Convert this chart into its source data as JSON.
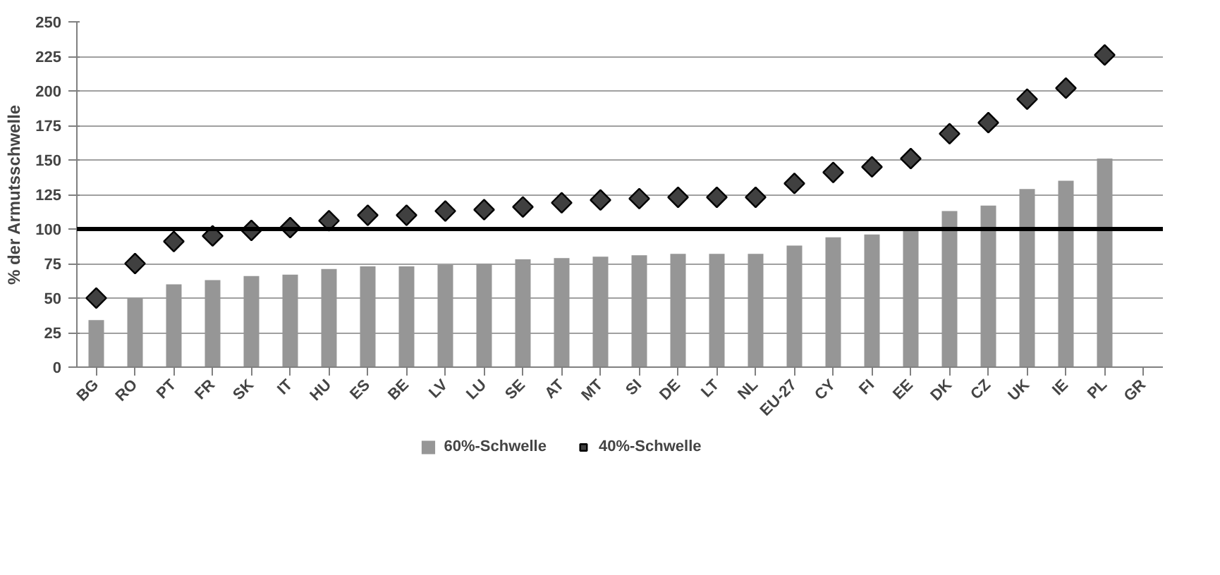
{
  "chart_data": {
    "type": "bar",
    "ylabel": "% der Armutsschwelle",
    "categories": [
      "BG",
      "RO",
      "PT",
      "FR",
      "SK",
      "IT",
      "HU",
      "ES",
      "BE",
      "LV",
      "LU",
      "SE",
      "AT",
      "MT",
      "SI",
      "DE",
      "LT",
      "NL",
      "EU-27",
      "CY",
      "FI",
      "EE",
      "DK",
      "CZ",
      "UK",
      "IE",
      "PL",
      "GR"
    ],
    "series": [
      {
        "name": "60%-Schwelle",
        "color": "#969696",
        "values": [
          34,
          50,
          60,
          63,
          66,
          67,
          71,
          73,
          73,
          74,
          75,
          78,
          79,
          80,
          81,
          82,
          82,
          82,
          88,
          94,
          96,
          100,
          113,
          117,
          129,
          135,
          151,
          null
        ]
      },
      {
        "name": "40%-Schwelle",
        "type": "scatter",
        "marker": "diamond",
        "color": "#404040",
        "values": [
          50,
          75,
          91,
          95,
          99,
          101,
          106,
          110,
          110,
          113,
          114,
          116,
          119,
          121,
          122,
          123,
          123,
          123,
          133,
          141,
          145,
          151,
          169,
          177,
          194,
          202,
          226,
          null
        ]
      }
    ],
    "ylim": [
      0,
      250
    ],
    "yticks": [
      0,
      25,
      50,
      75,
      100,
      125,
      150,
      175,
      200,
      225,
      250
    ],
    "ref_lines": [
      {
        "axis": "y",
        "value": 100,
        "color": "#000000"
      }
    ],
    "grid": "y",
    "legend": "bottom"
  }
}
